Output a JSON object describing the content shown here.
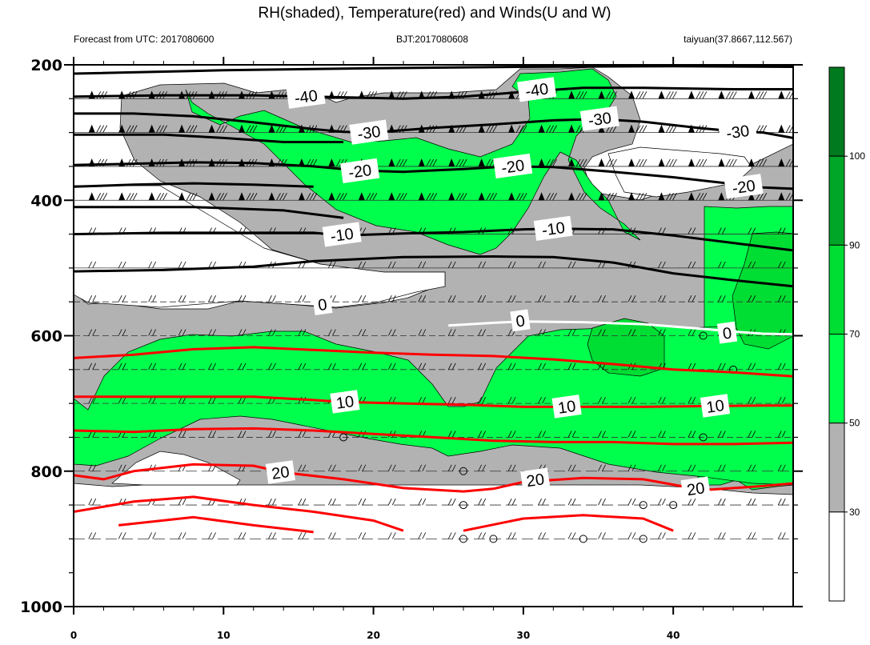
{
  "chart_data": {
    "type": "contour",
    "title": "RH(shaded), Temperature(red) and Winds(U and W)",
    "subtitles": {
      "left": "Forecast from UTC: 2017080600",
      "center": "BJT:2017080608",
      "right": "taiyuan(37.8667,112.567)"
    },
    "x_range": [
      0,
      48
    ],
    "x_ticks": [
      0,
      10,
      20,
      30,
      40
    ],
    "y_range": [
      200,
      1000
    ],
    "y_ticks": [
      200,
      400,
      600,
      800,
      1000
    ],
    "y_scale": "reversed (pressure, hPa)",
    "rh_colorbar": {
      "levels": [
        30,
        50,
        70,
        90,
        100
      ],
      "colors": [
        "#ffffff",
        "#b2b2b2",
        "#00ff4c",
        "#00dd33",
        "#00a628",
        "#007a1e"
      ]
    },
    "temperature_contours": [
      {
        "value": -40,
        "color": "#000000",
        "labels": [
          {
            "x": 15.5,
            "y": 247
          },
          {
            "x": 30.9,
            "y": 237
          }
        ]
      },
      {
        "value": -30,
        "color": "#000000",
        "labels": [
          {
            "x": 19.7,
            "y": 300
          },
          {
            "x": 35.1,
            "y": 280
          },
          {
            "x": 44.3,
            "y": 299
          }
        ]
      },
      {
        "value": -20,
        "color": "#000000",
        "labels": [
          {
            "x": 19.1,
            "y": 357
          },
          {
            "x": 29.3,
            "y": 350
          },
          {
            "x": 44.7,
            "y": 380
          }
        ]
      },
      {
        "value": -10,
        "color": "#000000",
        "labels": [
          {
            "x": 17.9,
            "y": 451
          },
          {
            "x": 32.0,
            "y": 442
          }
        ]
      },
      {
        "value": 0,
        "color": "#ffffff",
        "labels": [
          {
            "x": 16.6,
            "y": 554
          },
          {
            "x": 29.8,
            "y": 578
          },
          {
            "x": 43.6,
            "y": 596
          }
        ]
      },
      {
        "value": 10,
        "color": "#ff0000",
        "labels": [
          {
            "x": 18.1,
            "y": 698
          },
          {
            "x": 32.9,
            "y": 705
          },
          {
            "x": 42.8,
            "y": 704
          }
        ]
      },
      {
        "value": 20,
        "color": "#ff0000",
        "labels": [
          {
            "x": 13.8,
            "y": 802
          },
          {
            "x": 30.8,
            "y": 813
          },
          {
            "x": 41.5,
            "y": 826
          }
        ]
      }
    ],
    "temperature_lines": [
      {
        "value": -40,
        "color": "#000000",
        "points": [
          [
            0,
            213
          ],
          [
            10,
            208
          ],
          [
            20,
            205
          ],
          [
            30,
            203
          ],
          [
            40,
            202
          ],
          [
            48,
            203
          ]
        ]
      },
      {
        "value": -40,
        "color": "#000000",
        "points": [
          [
            0,
            247
          ],
          [
            6,
            245
          ],
          [
            12,
            245
          ],
          [
            16,
            247
          ],
          [
            22,
            250
          ],
          [
            26,
            247
          ],
          [
            30,
            240
          ],
          [
            34,
            234
          ],
          [
            38,
            234
          ],
          [
            44,
            236
          ],
          [
            48,
            236
          ]
        ]
      },
      {
        "value": -30,
        "color": "#000000",
        "points": [
          [
            0,
            272
          ],
          [
            4,
            272
          ],
          [
            8,
            276
          ],
          [
            12,
            285
          ],
          [
            16,
            295
          ],
          [
            18,
            299
          ],
          [
            20,
            300
          ],
          [
            24,
            293
          ],
          [
            28,
            288
          ],
          [
            32,
            282
          ],
          [
            35,
            280
          ],
          [
            38,
            284
          ],
          [
            42,
            294
          ],
          [
            44,
            298
          ],
          [
            46,
            300
          ],
          [
            48,
            308
          ]
        ]
      },
      {
        "value": -30,
        "color": "#000000",
        "points": [
          [
            0,
            303
          ],
          [
            6,
            303
          ],
          [
            10,
            308
          ],
          [
            14,
            314
          ],
          [
            18,
            314
          ]
        ]
      },
      {
        "value": -20,
        "color": "#000000",
        "points": [
          [
            0,
            348
          ],
          [
            4,
            346
          ],
          [
            8,
            344
          ],
          [
            12,
            345
          ],
          [
            16,
            350
          ],
          [
            19,
            356
          ],
          [
            22,
            358
          ],
          [
            26,
            354
          ],
          [
            29,
            350
          ],
          [
            32,
            351
          ],
          [
            36,
            358
          ],
          [
            40,
            366
          ],
          [
            44,
            376
          ],
          [
            46,
            381
          ],
          [
            48,
            383
          ]
        ]
      },
      {
        "value": -20,
        "color": "#000000",
        "points": [
          [
            0,
            380
          ],
          [
            4,
            377
          ],
          [
            8,
            375
          ],
          [
            12,
            377
          ],
          [
            16,
            380
          ]
        ]
      },
      {
        "value": -10,
        "color": "#000000",
        "points": [
          [
            0,
            410
          ],
          [
            8,
            410
          ],
          [
            14,
            415
          ],
          [
            18,
            426
          ]
        ]
      },
      {
        "value": -10,
        "color": "#000000",
        "points": [
          [
            0,
            450
          ],
          [
            6,
            448
          ],
          [
            12,
            448
          ],
          [
            16,
            448
          ],
          [
            18,
            452
          ],
          [
            22,
            449
          ],
          [
            26,
            447
          ],
          [
            30,
            443
          ],
          [
            32,
            442
          ],
          [
            36,
            443
          ],
          [
            40,
            452
          ],
          [
            44,
            463
          ],
          [
            48,
            474
          ]
        ]
      },
      {
        "value": -10,
        "color": "#000000",
        "points": [
          [
            0,
            505
          ],
          [
            6,
            503
          ],
          [
            12,
            498
          ],
          [
            16,
            490
          ],
          [
            22,
            484
          ],
          [
            28,
            483
          ],
          [
            32,
            484
          ],
          [
            36,
            492
          ],
          [
            40,
            508
          ],
          [
            44,
            518
          ],
          [
            48,
            527
          ]
        ]
      },
      {
        "value": 0,
        "color": "#ffffff",
        "points": [
          [
            25,
            585
          ],
          [
            28,
            581
          ],
          [
            30,
            579
          ],
          [
            34,
            580
          ],
          [
            38,
            583
          ],
          [
            42,
            590
          ],
          [
            44,
            594
          ],
          [
            46,
            597
          ],
          [
            48,
            598
          ]
        ]
      },
      {
        "value": 10,
        "color": "#ff0000",
        "points": [
          [
            0,
            633
          ],
          [
            4,
            628
          ],
          [
            8,
            620
          ],
          [
            12,
            617
          ],
          [
            16,
            621
          ],
          [
            20,
            625
          ],
          [
            24,
            628
          ],
          [
            28,
            630
          ],
          [
            32,
            635
          ],
          [
            36,
            642
          ],
          [
            40,
            650
          ],
          [
            44,
            654
          ],
          [
            48,
            660
          ]
        ]
      },
      {
        "value": 10,
        "color": "#ff0000",
        "points": [
          [
            0,
            690
          ],
          [
            4,
            690
          ],
          [
            8,
            690
          ],
          [
            12,
            690
          ],
          [
            16,
            695
          ],
          [
            18,
            698
          ],
          [
            22,
            700
          ],
          [
            26,
            702
          ],
          [
            30,
            705
          ],
          [
            34,
            705
          ],
          [
            38,
            705
          ],
          [
            42,
            704
          ],
          [
            46,
            703
          ],
          [
            48,
            703
          ]
        ]
      },
      {
        "value": 10,
        "color": "#ff0000",
        "points": [
          [
            0,
            740
          ],
          [
            4,
            742
          ],
          [
            8,
            738
          ],
          [
            12,
            737
          ],
          [
            16,
            740
          ],
          [
            20,
            745
          ],
          [
            24,
            750
          ],
          [
            28,
            755
          ],
          [
            32,
            757
          ],
          [
            36,
            757
          ],
          [
            40,
            760
          ],
          [
            44,
            760
          ],
          [
            48,
            758
          ]
        ]
      },
      {
        "value": 20,
        "color": "#ff0000",
        "points": [
          [
            0,
            806
          ],
          [
            2,
            812
          ],
          [
            4,
            800
          ],
          [
            8,
            790
          ],
          [
            12,
            792
          ],
          [
            14,
            802
          ],
          [
            18,
            812
          ],
          [
            22,
            825
          ],
          [
            26,
            830
          ],
          [
            28,
            826
          ],
          [
            30,
            816
          ],
          [
            34,
            810
          ],
          [
            38,
            812
          ],
          [
            42,
            828
          ],
          [
            46,
            822
          ],
          [
            48,
            818
          ]
        ]
      },
      {
        "value": 20,
        "color": "#ff0000",
        "points": [
          [
            0,
            860
          ],
          [
            4,
            845
          ],
          [
            8,
            838
          ],
          [
            12,
            850
          ],
          [
            16,
            860
          ],
          [
            20,
            873
          ],
          [
            22,
            888
          ]
        ]
      },
      {
        "value": 20,
        "color": "#ff0000",
        "points": [
          [
            3,
            880
          ],
          [
            8,
            868
          ],
          [
            12,
            880
          ],
          [
            16,
            890
          ]
        ]
      },
      {
        "value": 20,
        "color": "#ff0000",
        "points": [
          [
            26,
            888
          ],
          [
            30,
            870
          ],
          [
            34,
            865
          ],
          [
            38,
            870
          ],
          [
            40,
            888
          ]
        ]
      }
    ],
    "wind_barbs": {
      "levels": [
        250,
        300,
        350,
        400,
        450,
        500,
        550,
        600,
        650,
        700,
        750,
        800,
        850,
        900
      ],
      "x_step": 2,
      "calm_circles": [
        [
          18,
          750
        ],
        [
          26,
          800
        ],
        [
          26,
          850
        ],
        [
          26,
          900
        ],
        [
          28,
          900
        ],
        [
          34,
          900
        ],
        [
          38,
          850
        ],
        [
          38,
          900
        ],
        [
          40,
          850
        ],
        [
          42,
          600
        ],
        [
          42,
          750
        ],
        [
          44,
          650
        ]
      ]
    }
  }
}
